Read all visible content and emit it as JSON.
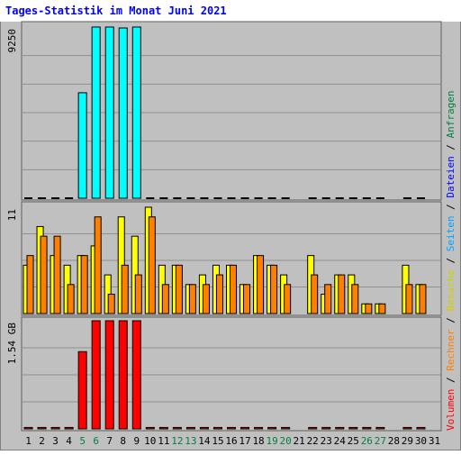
{
  "title": "Tages-Statistik im Monat Juni 2021",
  "colors": {
    "title": "#0000ff",
    "frame_bg": "#c0c0c0",
    "grid": "#909090",
    "anfragen": "#00ffff",
    "anfragen_shadow": "#00a0d0",
    "dateien": "#0000ff",
    "seiten": "#00b0ff",
    "besuche": "#ffff00",
    "rechner": "#ff8000",
    "volumen": "#ff0000",
    "weekday_label": "#000000",
    "weekend_label": "#008040"
  },
  "side_legend": [
    {
      "label": "Volumen",
      "color": "#ff0000"
    },
    {
      "label": "Rechner",
      "color": "#ff8000"
    },
    {
      "label": "Besuche",
      "color": "#d0d000"
    },
    {
      "label": "Seiten",
      "color": "#00a0ff"
    },
    {
      "label": "Dateien",
      "color": "#0000ff"
    },
    {
      "label": "Anfragen",
      "color": "#008040"
    }
  ],
  "legend_separator": "/",
  "chart_data": {
    "type": "bar",
    "title": "Tages-Statistik im Monat Juni 2021",
    "categories": [
      "1",
      "2",
      "3",
      "4",
      "5",
      "6",
      "7",
      "8",
      "9",
      "10",
      "11",
      "12",
      "13",
      "14",
      "15",
      "16",
      "17",
      "18",
      "19",
      "20",
      "21",
      "22",
      "23",
      "24",
      "25",
      "26",
      "27",
      "28",
      "29",
      "30",
      "31"
    ],
    "weekend_days": [
      "5",
      "6",
      "12",
      "13",
      "19",
      "20",
      "26",
      "27"
    ],
    "panels": [
      {
        "name": "anfragen",
        "ymax_label": "9250",
        "ymax": 9250,
        "series": [
          {
            "name": "Anfragen",
            "values": [
              45,
              60,
              40,
              40,
              5700,
              9250,
              9250,
              9200,
              9250,
              60,
              60,
              40,
              40,
              40,
              40,
              40,
              40,
              40,
              40,
              40,
              0,
              40,
              40,
              40,
              40,
              40,
              40,
              0,
              40,
              40,
              0
            ]
          }
        ]
      },
      {
        "name": "besuche",
        "ymax_label": "11",
        "ymax": 11,
        "series": [
          {
            "name": "Besuche",
            "values": [
              5,
              9,
              6,
              5,
              6,
              7,
              4,
              10,
              8,
              11,
              5,
              5,
              3,
              4,
              5,
              5,
              3,
              6,
              5,
              4,
              0,
              6,
              2,
              4,
              4,
              1,
              1,
              0,
              5,
              3,
              0
            ]
          },
          {
            "name": "Rechner",
            "values": [
              6,
              8,
              8,
              3,
              6,
              10,
              2,
              5,
              4,
              10,
              3,
              5,
              3,
              3,
              4,
              5,
              3,
              6,
              5,
              3,
              0,
              4,
              3,
              4,
              3,
              1,
              1,
              0,
              3,
              3,
              0
            ]
          }
        ]
      },
      {
        "name": "volumen",
        "ymax_label": "1.54 GB",
        "ymax": 1.54,
        "series": [
          {
            "name": "Volumen",
            "values": [
              0.02,
              0.02,
              0.02,
              0.02,
              1.1,
              1.54,
              1.54,
              1.54,
              1.54,
              0.02,
              0.02,
              0.02,
              0.02,
              0.02,
              0.02,
              0.02,
              0.02,
              0.02,
              0.02,
              0.02,
              0,
              0.02,
              0.02,
              0.02,
              0.02,
              0.02,
              0.02,
              0,
              0.02,
              0.02,
              0
            ]
          }
        ]
      }
    ]
  }
}
